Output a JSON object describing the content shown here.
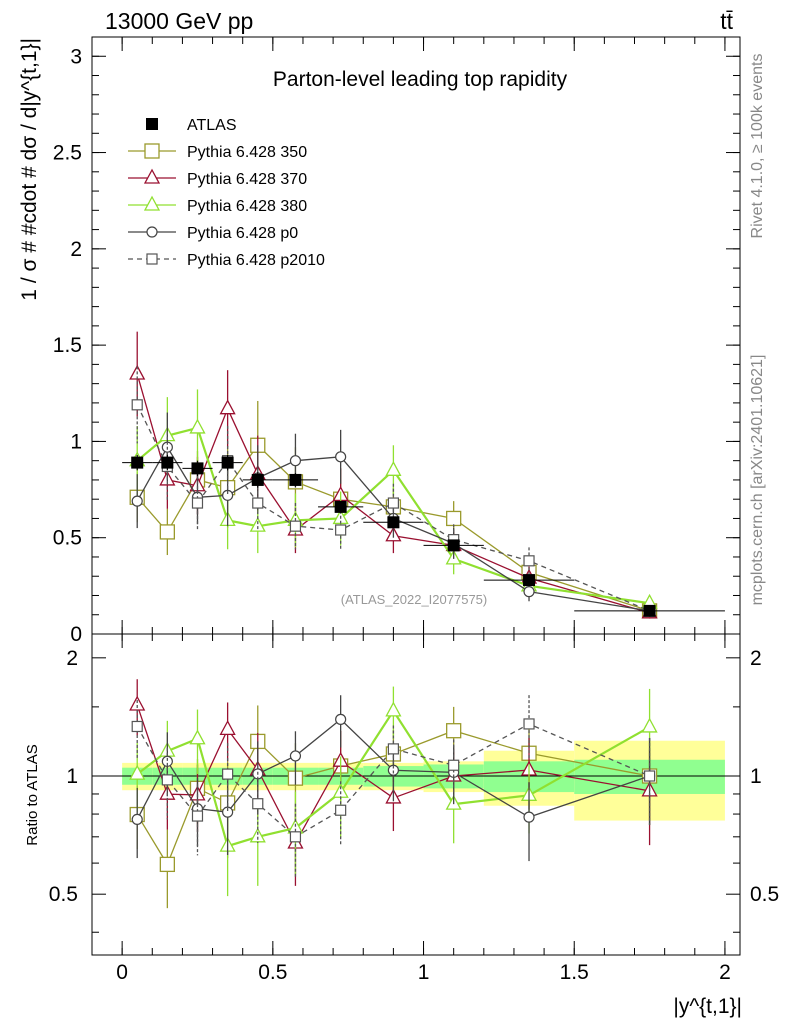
{
  "header": {
    "energy_label": "13000 GeV pp",
    "process_label": "tt̄"
  },
  "side_text": {
    "rivet": "Rivet 4.1.0, ≥ 100k events",
    "mcplots": "mcplots.cern.ch [arXiv:2401.10621]"
  },
  "colors": {
    "atlas": "#000000",
    "p350": "#9a9a2c",
    "p370": "#9a1030",
    "p380": "#90e030",
    "p0": "#444444",
    "p2010": "#555555",
    "band_inner": "#90ff90",
    "band_outer": "#ffff99"
  },
  "chart_data": {
    "type": "line",
    "title": "Parton-level leading top rapidity",
    "xlabel": "|y^{t,1}|",
    "ylabel": "1 / σ # #cdot # dσ / d|y^{t,1}|",
    "ratio_ylabel": "Ratio to ATLAS",
    "analysis_label": "(ATLAS_2022_I2077575)",
    "xlim": [
      -0.1,
      2.05
    ],
    "ylim": [
      0,
      3.1
    ],
    "ratio_ylim": [
      0.35,
      2.3
    ],
    "x_ticks": [
      "0",
      "0.5",
      "1",
      "1.5",
      "2"
    ],
    "y_ticks": [
      "0.5",
      "1",
      "1.5",
      "2",
      "2.5",
      "3"
    ],
    "ratio_y_ticks": [
      "0.5",
      "1",
      "2"
    ],
    "data_reference": {
      "name": "ATLAS",
      "x": [
        0.05,
        0.15,
        0.25,
        0.35,
        0.45,
        0.575,
        0.725,
        0.9,
        1.1,
        1.35,
        1.75
      ],
      "xlo": [
        0.0,
        0.1,
        0.2,
        0.3,
        0.4,
        0.5,
        0.65,
        0.8,
        1.0,
        1.2,
        1.5
      ],
      "xhi": [
        0.1,
        0.2,
        0.3,
        0.4,
        0.5,
        0.65,
        0.8,
        1.0,
        1.2,
        1.5,
        2.0
      ],
      "y": [
        0.89,
        0.89,
        0.86,
        0.89,
        0.8,
        0.8,
        0.66,
        0.58,
        0.46,
        0.28,
        0.12
      ],
      "err": [
        0.04,
        0.04,
        0.04,
        0.04,
        0.04,
        0.035,
        0.03,
        0.03,
        0.025,
        0.02,
        0.01
      ],
      "band_inner": [
        0.05,
        0.05,
        0.05,
        0.05,
        0.05,
        0.05,
        0.05,
        0.06,
        0.07,
        0.09,
        0.1
      ],
      "band_outer": [
        0.08,
        0.08,
        0.08,
        0.08,
        0.08,
        0.08,
        0.08,
        0.08,
        0.09,
        0.16,
        0.23
      ]
    },
    "series": [
      {
        "name": "Pythia 6.428 350",
        "color_key": "p350",
        "marker": "open-square",
        "dash": "",
        "x": [
          0.05,
          0.15,
          0.25,
          0.35,
          0.45,
          0.575,
          0.725,
          0.9,
          1.1,
          1.35,
          1.75
        ],
        "y": [
          0.71,
          0.53,
          0.8,
          0.76,
          0.98,
          0.79,
          0.7,
          0.66,
          0.6,
          0.32,
          0.12
        ],
        "err": [
          0.13,
          0.12,
          0.15,
          0.21,
          0.23,
          0.18,
          0.16,
          0.1,
          0.09,
          0.06,
          0.03
        ]
      },
      {
        "name": "Pythia 6.428 370",
        "color_key": "p370",
        "marker": "open-triangle",
        "dash": "",
        "x": [
          0.05,
          0.15,
          0.25,
          0.35,
          0.45,
          0.575,
          0.725,
          0.9,
          1.1,
          1.35,
          1.75
        ],
        "y": [
          1.35,
          0.8,
          0.77,
          1.17,
          0.83,
          0.54,
          0.72,
          0.51,
          0.46,
          0.29,
          0.11
        ],
        "err": [
          0.22,
          0.15,
          0.15,
          0.2,
          0.2,
          0.12,
          0.14,
          0.09,
          0.08,
          0.06,
          0.03
        ]
      },
      {
        "name": "Pythia 6.428 380",
        "color_key": "p380",
        "marker": "open-triangle",
        "dash": "",
        "x": [
          0.05,
          0.15,
          0.25,
          0.35,
          0.45,
          0.575,
          0.725,
          0.9,
          1.1,
          1.35,
          1.75
        ],
        "y": [
          0.9,
          1.03,
          1.07,
          0.59,
          0.56,
          0.59,
          0.6,
          0.85,
          0.39,
          0.25,
          0.16
        ],
        "err": [
          0.18,
          0.2,
          0.2,
          0.15,
          0.14,
          0.14,
          0.14,
          0.13,
          0.08,
          0.05,
          0.04
        ]
      },
      {
        "name": "Pythia 6.428 p0",
        "color_key": "p0",
        "marker": "open-circle",
        "dash": "",
        "x": [
          0.05,
          0.15,
          0.25,
          0.35,
          0.45,
          0.575,
          0.725,
          0.9,
          1.1,
          1.35,
          1.75
        ],
        "y": [
          0.69,
          0.97,
          0.71,
          0.72,
          0.81,
          0.9,
          0.92,
          0.6,
          0.47,
          0.22,
          0.12
        ],
        "err": [
          0.14,
          0.18,
          0.14,
          0.16,
          0.17,
          0.14,
          0.14,
          0.1,
          0.08,
          0.05,
          0.03
        ]
      },
      {
        "name": "Pythia 6.428 p2010",
        "color_key": "p2010",
        "marker": "open-square-small",
        "dash": "5,4",
        "x": [
          0.05,
          0.15,
          0.25,
          0.35,
          0.45,
          0.575,
          0.725,
          0.9,
          1.1,
          1.35,
          1.75
        ],
        "y": [
          1.19,
          0.87,
          0.68,
          0.9,
          0.68,
          0.56,
          0.54,
          0.68,
          0.49,
          0.38,
          0.12
        ],
        "err": [
          0.2,
          0.18,
          0.14,
          0.18,
          0.14,
          0.12,
          0.1,
          0.1,
          0.08,
          0.07,
          0.03
        ]
      }
    ]
  }
}
